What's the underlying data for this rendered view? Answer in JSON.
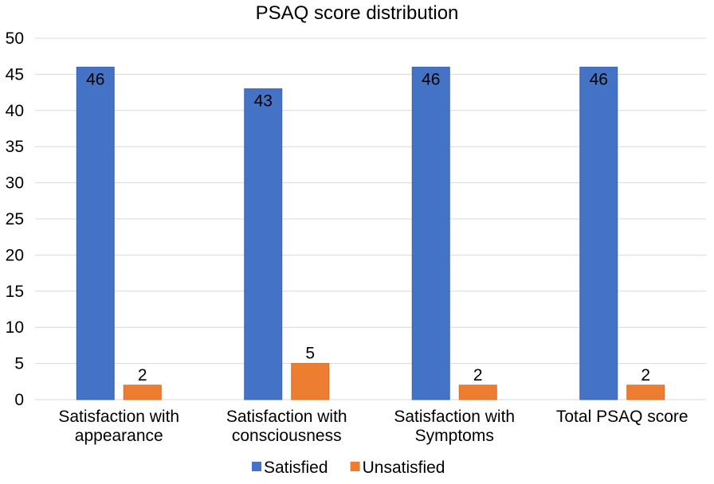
{
  "chart_data": {
    "type": "bar",
    "title": "PSAQ score distribution",
    "xlabel": "",
    "ylabel": "",
    "ylim": [
      0,
      50
    ],
    "yticks": [
      0,
      5,
      10,
      15,
      20,
      25,
      30,
      35,
      40,
      45,
      50
    ],
    "grid": true,
    "legend_position": "bottom",
    "categories": [
      [
        "Satisfaction with",
        "appearance"
      ],
      [
        "Satisfaction with",
        "consciousness"
      ],
      [
        "Satisfaction with",
        "Symptoms"
      ],
      [
        "Total PSAQ score"
      ]
    ],
    "series": [
      {
        "name": "Satisfied",
        "color": "#4472c4",
        "values": [
          46,
          43,
          46,
          46
        ]
      },
      {
        "name": "Unsatisfied",
        "color": "#ed7d31",
        "values": [
          2,
          5,
          2,
          2
        ]
      }
    ]
  }
}
